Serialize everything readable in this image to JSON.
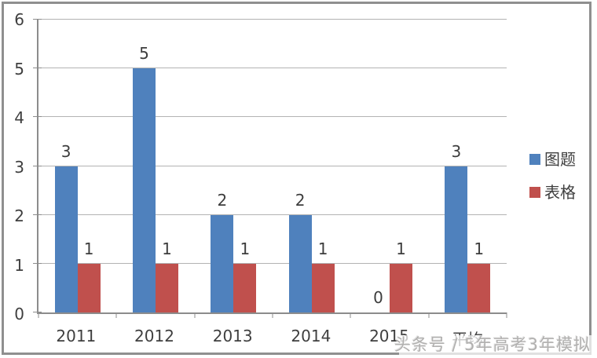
{
  "chart_data": {
    "type": "bar",
    "title": "",
    "xlabel": "",
    "ylabel": "",
    "categories": [
      "2011",
      "2012",
      "2013",
      "2014",
      "2015",
      "平均"
    ],
    "series": [
      {
        "name": "图题",
        "color": "#4f81bd",
        "values": [
          3,
          5,
          2,
          2,
          0,
          3
        ]
      },
      {
        "name": "表格",
        "color": "#c0504d",
        "values": [
          1,
          1,
          1,
          1,
          1,
          1
        ]
      }
    ],
    "ylim": [
      0,
      6
    ],
    "yticks": [
      0,
      1,
      2,
      3,
      4,
      5,
      6
    ],
    "grid": true,
    "data_labels": true,
    "legend_position": "right"
  },
  "legend": {
    "items": [
      {
        "label": "图题",
        "swatch": "blue-square"
      },
      {
        "label": "表格",
        "swatch": "red-square"
      }
    ]
  },
  "watermark": {
    "text": "头条号 / 5年高考3年模拟"
  },
  "colors": {
    "series_blue": "#4f81bd",
    "series_red": "#c0504d",
    "gridline": "#b3b3b3",
    "axis": "#8c8c8c",
    "text": "#3f3f3f",
    "frame": "#8f8f8f",
    "watermark": "#b1b0af",
    "background": "#ffffff"
  }
}
